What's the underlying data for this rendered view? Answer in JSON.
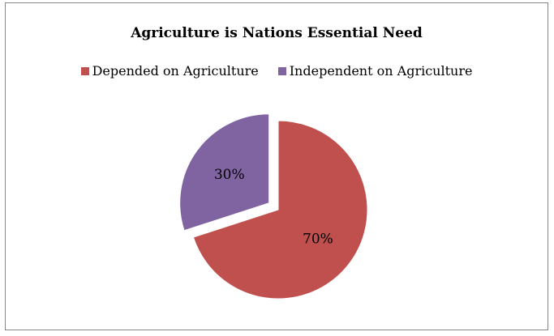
{
  "chart_data": {
    "type": "pie",
    "title": "Agriculture is Nations Essential Need",
    "legend_position": "top",
    "categories": [
      "Depended on Agriculture",
      "Independent on Agriculture"
    ],
    "values": [
      70,
      30
    ],
    "labels": [
      "70%",
      "30%"
    ],
    "colors": [
      "#C0504D",
      "#8064A2"
    ],
    "exploded": [
      false,
      true
    ]
  }
}
